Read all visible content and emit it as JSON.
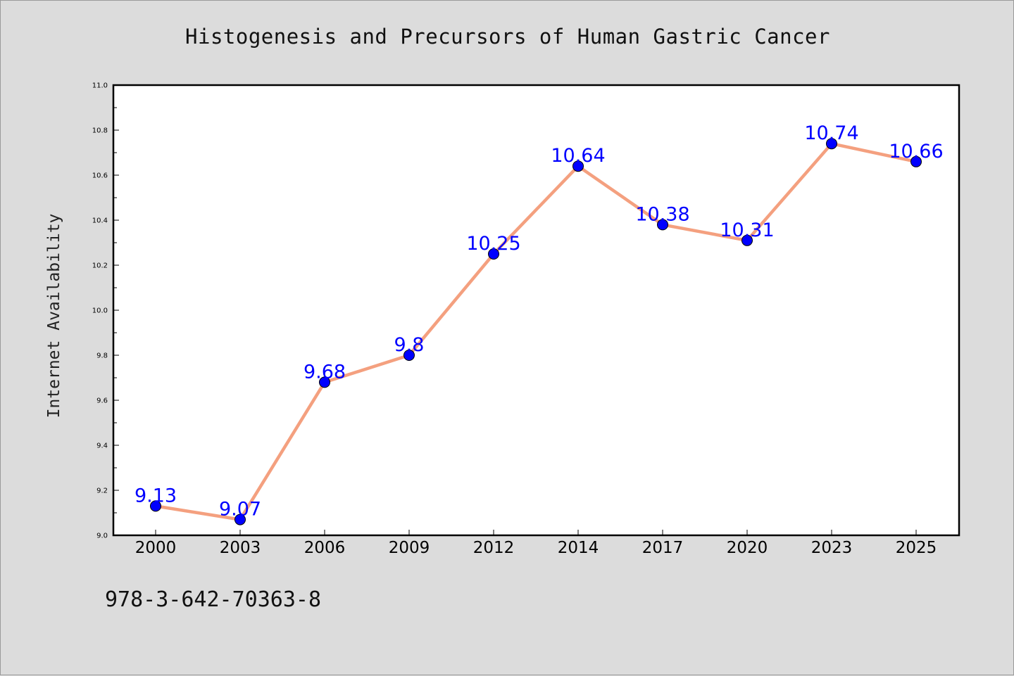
{
  "chart_data": {
    "type": "line",
    "title": "Histogenesis and Precursors of Human Gastric Cancer",
    "xlabel": "",
    "ylabel": "Internet Availability",
    "categories": [
      "2000",
      "2003",
      "2006",
      "2009",
      "2012",
      "2014",
      "2017",
      "2020",
      "2023",
      "2025"
    ],
    "series": [
      {
        "values": [
          9.13,
          9.07,
          9.68,
          9.8,
          10.25,
          10.64,
          10.38,
          10.31,
          10.74,
          10.66
        ],
        "labels": [
          "9.13",
          "9.07",
          "9.68",
          "9.8",
          "10.25",
          "10.64",
          "10.38",
          "10.31",
          "10.74",
          "10.66"
        ],
        "line_color": "#f4a07f",
        "marker_color": "#0000ff"
      }
    ],
    "ylim": [
      9.0,
      11.0
    ],
    "yticks": [
      "9.0",
      "9.2",
      "9.4",
      "9.6",
      "9.8",
      "10.0",
      "10.2",
      "10.4",
      "10.6",
      "10.8",
      "11.0"
    ],
    "grid": false,
    "legend": "none"
  },
  "footer_text": "978-3-642-70363-8"
}
